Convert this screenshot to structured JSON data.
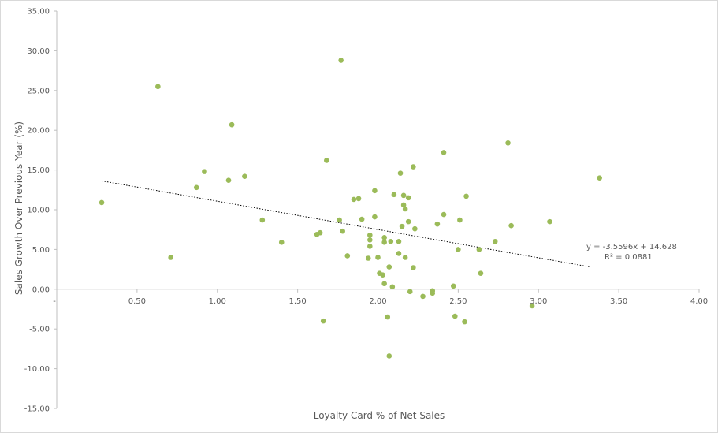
{
  "chart_data": {
    "type": "scatter",
    "xlabel": "Loyalty Card % of Net Sales",
    "ylabel": "Sales Growth Over Previous Year (%)",
    "xlim": [
      0,
      4
    ],
    "ylim": [
      -15,
      35
    ],
    "x_ticks": [
      "-",
      "0.50",
      "1.00",
      "1.50",
      "2.00",
      "2.50",
      "3.00",
      "3.50",
      "4.00"
    ],
    "x_tick_values": [
      0,
      0.5,
      1.0,
      1.5,
      2.0,
      2.5,
      3.0,
      3.5,
      4.0
    ],
    "y_ticks": [
      "35.00",
      "30.00",
      "25.00",
      "20.00",
      "15.00",
      "10.00",
      "5.00",
      "0.00",
      "-5.00",
      "-10.00",
      "-15.00"
    ],
    "y_tick_values": [
      35,
      30,
      25,
      20,
      15,
      10,
      5,
      0,
      -5,
      -10,
      -15
    ],
    "grid": false,
    "marker_color": "#9bbb59",
    "trendline": {
      "type": "linear",
      "slope": -3.5596,
      "intercept": 14.628,
      "x_range": [
        0.28,
        3.32
      ],
      "style": "dotted",
      "color": "#000000",
      "equation_label": "y = -3.5596x + 14.628",
      "r2_label": "R² = 0.0881"
    },
    "points": [
      {
        "x": 0.28,
        "y": 10.9
      },
      {
        "x": 0.63,
        "y": 25.5
      },
      {
        "x": 0.71,
        "y": 4.0
      },
      {
        "x": 0.87,
        "y": 12.8
      },
      {
        "x": 0.92,
        "y": 14.8
      },
      {
        "x": 1.07,
        "y": 13.7
      },
      {
        "x": 1.09,
        "y": 20.7
      },
      {
        "x": 1.17,
        "y": 14.2
      },
      {
        "x": 1.28,
        "y": 8.7
      },
      {
        "x": 1.4,
        "y": 5.9
      },
      {
        "x": 1.62,
        "y": 6.9
      },
      {
        "x": 1.64,
        "y": 7.1
      },
      {
        "x": 1.66,
        "y": -4.0
      },
      {
        "x": 1.68,
        "y": 16.2
      },
      {
        "x": 1.76,
        "y": 8.7
      },
      {
        "x": 1.77,
        "y": 28.8
      },
      {
        "x": 1.78,
        "y": 7.3
      },
      {
        "x": 1.81,
        "y": 4.2
      },
      {
        "x": 1.85,
        "y": 11.3
      },
      {
        "x": 1.88,
        "y": 11.4
      },
      {
        "x": 1.9,
        "y": 8.8
      },
      {
        "x": 1.94,
        "y": 3.9
      },
      {
        "x": 1.95,
        "y": 6.8
      },
      {
        "x": 1.95,
        "y": 6.2
      },
      {
        "x": 1.95,
        "y": 5.4
      },
      {
        "x": 1.98,
        "y": 12.4
      },
      {
        "x": 1.98,
        "y": 9.1
      },
      {
        "x": 2.0,
        "y": 4.0
      },
      {
        "x": 2.01,
        "y": 2.0
      },
      {
        "x": 2.03,
        "y": 1.8
      },
      {
        "x": 2.04,
        "y": 6.5
      },
      {
        "x": 2.04,
        "y": 5.9
      },
      {
        "x": 2.04,
        "y": 0.7
      },
      {
        "x": 2.06,
        "y": -3.5
      },
      {
        "x": 2.07,
        "y": 2.8
      },
      {
        "x": 2.07,
        "y": -8.4
      },
      {
        "x": 2.08,
        "y": 6.0
      },
      {
        "x": 2.09,
        "y": 0.3
      },
      {
        "x": 2.1,
        "y": 11.9
      },
      {
        "x": 2.13,
        "y": 6.0
      },
      {
        "x": 2.13,
        "y": 4.5
      },
      {
        "x": 2.14,
        "y": 14.6
      },
      {
        "x": 2.15,
        "y": 7.9
      },
      {
        "x": 2.16,
        "y": 11.8
      },
      {
        "x": 2.16,
        "y": 10.6
      },
      {
        "x": 2.17,
        "y": 10.1
      },
      {
        "x": 2.17,
        "y": 4.0
      },
      {
        "x": 2.19,
        "y": 11.5
      },
      {
        "x": 2.19,
        "y": 8.5
      },
      {
        "x": 2.2,
        "y": -0.3
      },
      {
        "x": 2.22,
        "y": 15.4
      },
      {
        "x": 2.22,
        "y": 2.7
      },
      {
        "x": 2.23,
        "y": 7.6
      },
      {
        "x": 2.28,
        "y": -0.9
      },
      {
        "x": 2.34,
        "y": -0.2
      },
      {
        "x": 2.34,
        "y": -0.5
      },
      {
        "x": 2.37,
        "y": 8.2
      },
      {
        "x": 2.41,
        "y": 17.2
      },
      {
        "x": 2.41,
        "y": 9.4
      },
      {
        "x": 2.47,
        "y": 0.4
      },
      {
        "x": 2.48,
        "y": -3.4
      },
      {
        "x": 2.5,
        "y": 5.0
      },
      {
        "x": 2.51,
        "y": 8.7
      },
      {
        "x": 2.54,
        "y": -4.1
      },
      {
        "x": 2.55,
        "y": 11.7
      },
      {
        "x": 2.63,
        "y": 5.0
      },
      {
        "x": 2.64,
        "y": 2.0
      },
      {
        "x": 2.73,
        "y": 6.0
      },
      {
        "x": 2.81,
        "y": 18.4
      },
      {
        "x": 2.83,
        "y": 8.0
      },
      {
        "x": 2.96,
        "y": -2.1
      },
      {
        "x": 3.07,
        "y": 8.5
      },
      {
        "x": 3.38,
        "y": 14.0
      }
    ]
  }
}
